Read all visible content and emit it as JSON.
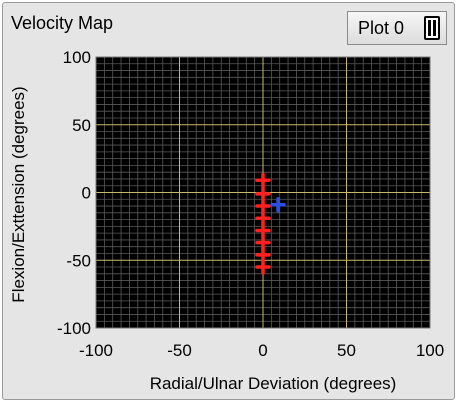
{
  "window": {
    "title": "Velocity Map",
    "plot_legend_label": "Plot 0"
  },
  "chart_data": {
    "type": "scatter",
    "xlabel": "Radial/Ulnar Deviation (degrees)",
    "ylabel": "Flexion/Exttension (degrees)",
    "xlim": [
      -100,
      100
    ],
    "ylim": [
      -100,
      100
    ],
    "xticks": [
      -100,
      -50,
      0,
      50,
      100
    ],
    "yticks": [
      100,
      50,
      0,
      -50,
      -100
    ],
    "grid": true,
    "background": "#000000",
    "major_grid_color": "#c9b96b",
    "minor_grid_color": "#5a5a5a",
    "series": [
      {
        "marker": "plus",
        "color": "#ff2020",
        "points": [
          {
            "x": 0,
            "y": 9
          },
          {
            "x": 0,
            "y": -1
          },
          {
            "x": 0,
            "y": -10
          },
          {
            "x": 0,
            "y": -19
          },
          {
            "x": 0,
            "y": -28
          },
          {
            "x": 0,
            "y": -37
          },
          {
            "x": 0,
            "y": -46
          },
          {
            "x": 0,
            "y": -55
          }
        ]
      },
      {
        "marker": "plus",
        "color": "#2a4fe0",
        "points": [
          {
            "x": 9,
            "y": -9
          }
        ]
      }
    ]
  }
}
